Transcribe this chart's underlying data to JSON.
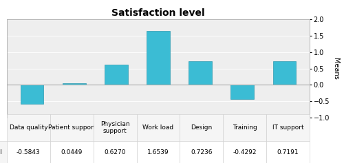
{
  "categories": [
    "Data quality",
    "Patient support",
    "Physician\nsupport",
    "Work load",
    "Design",
    "Training",
    "IT support"
  ],
  "values": [
    -0.5843,
    0.0449,
    0.627,
    1.6539,
    0.7236,
    -0.4292,
    0.7191
  ],
  "table_col_labels": [
    "Data quality",
    "Patient support",
    "Physician\nsupport",
    "Work load",
    "Design",
    "Training",
    "IT support"
  ],
  "table_values": [
    "-0.5843",
    "0.0449",
    "0.6270",
    "1.6539",
    "0.7236",
    "-0.4292",
    "0.7191"
  ],
  "bar_color": "#3BBCD4",
  "bar_edge_color": "#2A9AB0",
  "title": "Satisfaction level",
  "ylabel": "Means",
  "ylim": [
    -1.0,
    2.0
  ],
  "yticks": [
    -1.0,
    -0.5,
    0.0,
    0.5,
    1.0,
    1.5,
    2.0
  ],
  "legend_label": "Satisfaction level",
  "legend_color": "#3BBCD4",
  "background_color": "#ffffff",
  "plot_bg_color": "#eeeeee",
  "title_fontsize": 10,
  "axis_fontsize": 7,
  "tick_fontsize": 7,
  "table_fontsize": 6.5
}
